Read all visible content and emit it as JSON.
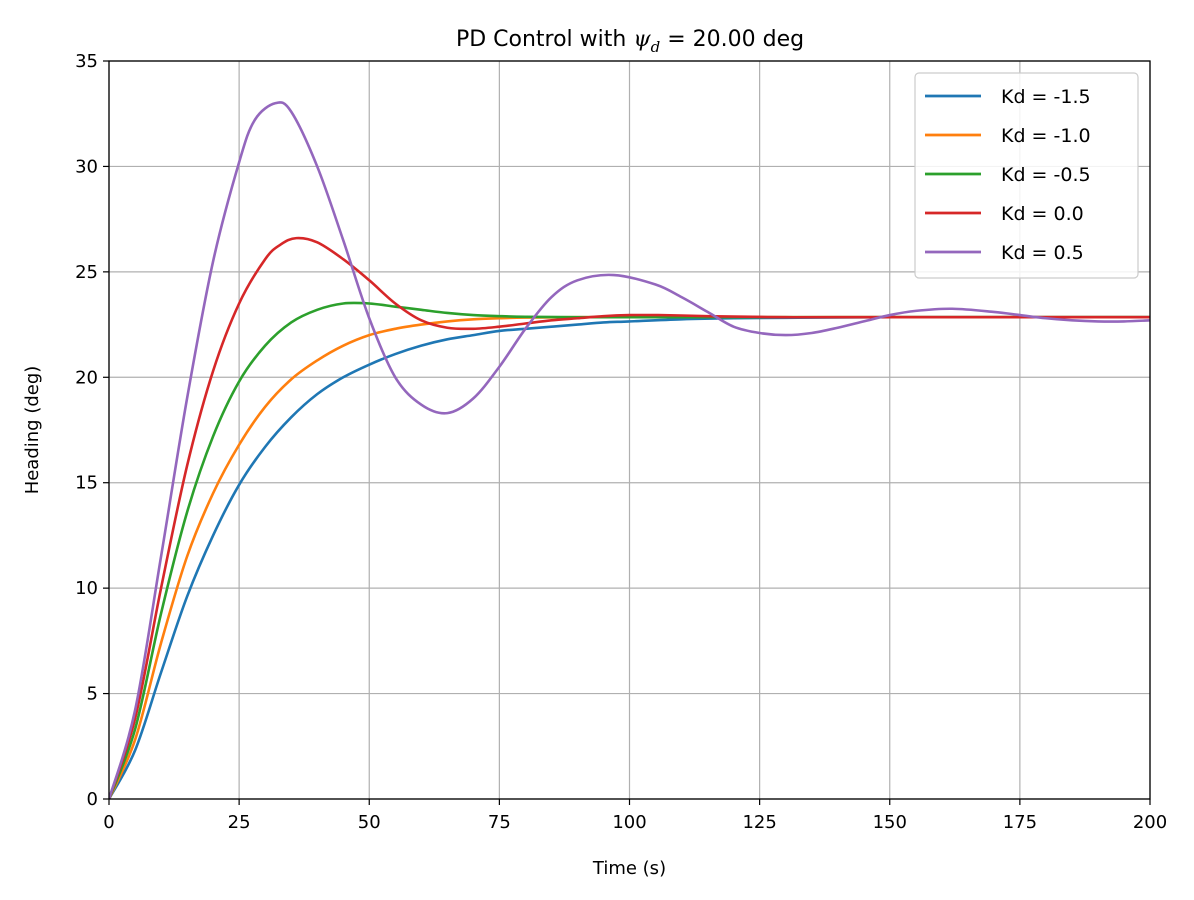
{
  "chart_data": {
    "type": "line",
    "title": "PD Control with ψd = 20.00 deg",
    "title_parts": {
      "prefix": "PD Control with ",
      "symbol": "ψ",
      "subscript": "d",
      "suffix": " = 20.00 deg"
    },
    "xlabel": "Time (s)",
    "ylabel": "Heading (deg)",
    "xlim": [
      0,
      200
    ],
    "ylim": [
      0,
      35
    ],
    "xticks": [
      0,
      25,
      50,
      75,
      100,
      125,
      150,
      175,
      200
    ],
    "yticks": [
      0,
      5,
      10,
      15,
      20,
      25,
      30,
      35
    ],
    "grid": true,
    "legend_position": "top-right",
    "series": [
      {
        "name": "Kd = -1.5",
        "color": "#1f77b4",
        "x": [
          0,
          5,
          10,
          15,
          20,
          25,
          30,
          35,
          40,
          45,
          50,
          55,
          60,
          65,
          70,
          75,
          80,
          85,
          90,
          95,
          100,
          110,
          120,
          130,
          150,
          200
        ],
        "y": [
          0,
          2.3,
          6.0,
          9.6,
          12.5,
          14.9,
          16.7,
          18.1,
          19.2,
          20.0,
          20.6,
          21.1,
          21.5,
          21.8,
          22.0,
          22.2,
          22.3,
          22.4,
          22.5,
          22.6,
          22.65,
          22.75,
          22.8,
          22.82,
          22.85,
          22.85
        ]
      },
      {
        "name": "Kd = -1.0",
        "color": "#ff7f0e",
        "x": [
          0,
          5,
          10,
          15,
          20,
          25,
          30,
          35,
          40,
          45,
          50,
          55,
          60,
          65,
          70,
          75,
          80,
          90,
          100,
          120,
          200
        ],
        "y": [
          0,
          2.8,
          7.4,
          11.5,
          14.5,
          16.8,
          18.6,
          19.9,
          20.8,
          21.5,
          22.0,
          22.3,
          22.5,
          22.65,
          22.75,
          22.8,
          22.83,
          22.85,
          22.85,
          22.85,
          22.85
        ]
      },
      {
        "name": "Kd = -0.5",
        "color": "#2ca02c",
        "x": [
          0,
          5,
          10,
          15,
          20,
          25,
          30,
          35,
          40,
          45,
          50,
          55,
          60,
          65,
          70,
          75,
          80,
          90,
          100,
          120,
          200
        ],
        "y": [
          0,
          3.3,
          8.8,
          13.6,
          17.2,
          19.8,
          21.5,
          22.6,
          23.2,
          23.5,
          23.5,
          23.35,
          23.2,
          23.05,
          22.95,
          22.9,
          22.87,
          22.85,
          22.85,
          22.85,
          22.85
        ]
      },
      {
        "name": "Kd = 0.0",
        "color": "#d62728",
        "x": [
          0,
          5,
          10,
          15,
          20,
          25,
          30,
          33,
          36,
          40,
          45,
          50,
          55,
          60,
          65,
          70,
          75,
          80,
          85,
          90,
          95,
          100,
          105,
          110,
          115,
          120,
          130,
          140,
          200
        ],
        "y": [
          0,
          3.8,
          10.0,
          15.8,
          20.3,
          23.5,
          25.6,
          26.3,
          26.6,
          26.4,
          25.6,
          24.6,
          23.5,
          22.7,
          22.35,
          22.3,
          22.4,
          22.55,
          22.7,
          22.8,
          22.9,
          22.95,
          22.95,
          22.93,
          22.9,
          22.88,
          22.85,
          22.85,
          22.85
        ]
      },
      {
        "name": "Kd = 0.5",
        "color": "#9467bd",
        "x": [
          0,
          5,
          10,
          15,
          20,
          25,
          28,
          32,
          35,
          40,
          45,
          50,
          55,
          60,
          65,
          70,
          75,
          80,
          85,
          90,
          97,
          105,
          110,
          115,
          120,
          125,
          130,
          135,
          140,
          145,
          150,
          155,
          162,
          170,
          175,
          180,
          185,
          190,
          195,
          200
        ],
        "y": [
          0,
          4.2,
          11.5,
          19.0,
          25.5,
          30.2,
          32.2,
          33.0,
          32.6,
          30.0,
          26.5,
          22.8,
          20.0,
          18.7,
          18.3,
          19.0,
          20.5,
          22.3,
          23.8,
          24.6,
          24.85,
          24.4,
          23.8,
          23.1,
          22.4,
          22.1,
          22.0,
          22.1,
          22.35,
          22.65,
          22.95,
          23.15,
          23.25,
          23.1,
          22.95,
          22.8,
          22.7,
          22.65,
          22.65,
          22.7
        ]
      }
    ]
  }
}
